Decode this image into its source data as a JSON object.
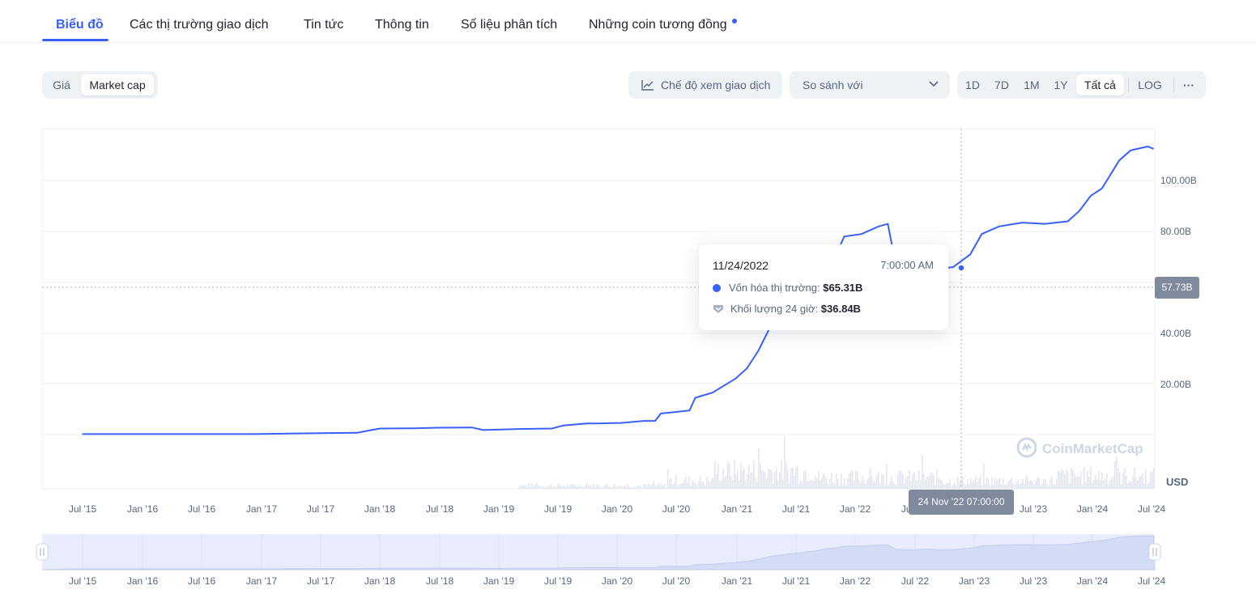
{
  "tabs": [
    {
      "label": "Biểu đồ"
    },
    {
      "label": "Các thị trường giao dịch"
    },
    {
      "label": "Tin tức"
    },
    {
      "label": "Thông tin"
    },
    {
      "label": "Số liệu phân tích"
    },
    {
      "label": "Những coin tương đồng"
    }
  ],
  "toolbar": {
    "price_label": "Giá",
    "marketcap_label": "Market cap",
    "trade_view_label": "Chế độ xem giao dịch",
    "compare_label": "So sánh với",
    "ranges": [
      "1D",
      "7D",
      "1M",
      "1Y",
      "Tất cả"
    ],
    "selected_range": "Tất cả",
    "log_label": "LOG",
    "more_label": "···"
  },
  "tooltip": {
    "date": "11/24/2022",
    "time": "7:00:00 AM",
    "marketcap_label": "Vốn hóa thị trường:",
    "marketcap_value": "$65.31B",
    "volume_label": "Khối lượng 24 giờ:",
    "volume_value": "$36.84B"
  },
  "crosshair": {
    "price_tag": "57.73B",
    "date_tag": "24 Nov '22 07:00:00"
  },
  "watermark": "CoinMarketCap",
  "currency": "USD",
  "colors": {
    "accent": "#3861fb",
    "line": "#3861fb",
    "tag": "#808a9d"
  },
  "chart_data": {
    "type": "line",
    "ylabel": "",
    "y_ticks": [
      "100.00B",
      "80.00B",
      "40.00B",
      "20.00B"
    ],
    "x_ticks": [
      "Jul '15",
      "Jan '16",
      "Jul '16",
      "Jan '17",
      "Jul '17",
      "Jan '18",
      "Jul '18",
      "Jan '19",
      "Jul '19",
      "Jan '20",
      "Jul '20",
      "Jan '21",
      "Jul '21",
      "Jan '22",
      "Jul '22",
      "Jul '23",
      "Jan '24",
      "Jul '24"
    ],
    "nav_x_ticks": [
      "Jul '15",
      "Jan '16",
      "Jul '16",
      "Jan '17",
      "Jul '17",
      "Jan '18",
      "Jul '18",
      "Jan '19",
      "Jul '19",
      "Jan '20",
      "Jul '20",
      "Jan '21",
      "Jul '21",
      "Jan '22",
      "Jul '22",
      "Jan '23",
      "Jul '23",
      "Jan '24",
      "Jul '24"
    ],
    "series": [
      {
        "values": [
          [
            2015.5,
            0.2
          ],
          [
            2016.0,
            0.2
          ],
          [
            2016.5,
            0.2
          ],
          [
            2017.0,
            0.2
          ],
          [
            2017.5,
            0.5
          ],
          [
            2017.9,
            0.7
          ],
          [
            2018.0,
            1.6
          ],
          [
            2018.1,
            2.4
          ],
          [
            2018.4,
            2.5
          ],
          [
            2018.6,
            2.7
          ],
          [
            2018.9,
            2.8
          ],
          [
            2019.0,
            1.8
          ],
          [
            2019.3,
            2.2
          ],
          [
            2019.6,
            2.4
          ],
          [
            2019.7,
            3.6
          ],
          [
            2019.9,
            4.4
          ],
          [
            2020.0,
            4.4
          ],
          [
            2020.2,
            4.6
          ],
          [
            2020.4,
            5.4
          ],
          [
            2020.5,
            5.4
          ],
          [
            2020.55,
            8.3
          ],
          [
            2020.8,
            9.5
          ],
          [
            2020.85,
            14.5
          ],
          [
            2021.0,
            16.5
          ],
          [
            2021.2,
            22.0
          ],
          [
            2021.3,
            26.0
          ],
          [
            2021.4,
            33.0
          ],
          [
            2021.5,
            42.0
          ],
          [
            2021.6,
            48.0
          ],
          [
            2021.75,
            55.0
          ],
          [
            2021.9,
            62.0
          ],
          [
            2022.0,
            70.0
          ],
          [
            2022.1,
            73.0
          ],
          [
            2022.15,
            78.0
          ],
          [
            2022.3,
            79.0
          ],
          [
            2022.45,
            82.0
          ],
          [
            2022.53,
            83.0
          ],
          [
            2022.6,
            67.0
          ],
          [
            2022.75,
            65.0
          ],
          [
            2022.85,
            68.0
          ],
          [
            2022.9,
            68.0
          ],
          [
            2022.98,
            65.3
          ],
          [
            2023.1,
            66.0
          ],
          [
            2023.25,
            71.0
          ],
          [
            2023.35,
            79.0
          ],
          [
            2023.5,
            82.0
          ],
          [
            2023.7,
            83.5
          ],
          [
            2023.9,
            83.0
          ],
          [
            2024.1,
            84.0
          ],
          [
            2024.2,
            88.0
          ],
          [
            2024.3,
            94.0
          ],
          [
            2024.4,
            97.0
          ],
          [
            2024.55,
            108.0
          ],
          [
            2024.65,
            112.0
          ],
          [
            2024.8,
            113.5
          ],
          [
            2024.85,
            112.5
          ]
        ]
      }
    ]
  }
}
